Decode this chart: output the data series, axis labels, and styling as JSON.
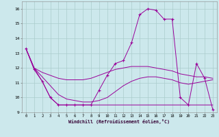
{
  "xlabel": "Windchill (Refroidissement éolien,°C)",
  "background_color": "#cce8ec",
  "grid_color": "#aacccc",
  "line_color": "#990099",
  "xlim": [
    -0.5,
    23.5
  ],
  "ylim": [
    9,
    16.5
  ],
  "xticks": [
    0,
    1,
    2,
    3,
    4,
    5,
    6,
    7,
    8,
    9,
    10,
    11,
    12,
    13,
    14,
    15,
    16,
    17,
    18,
    19,
    20,
    21,
    22,
    23
  ],
  "yticks": [
    9,
    10,
    11,
    12,
    13,
    14,
    15,
    16
  ],
  "series": [
    {
      "x": [
        0,
        1,
        2,
        3,
        4,
        5,
        6,
        7,
        8,
        9,
        10,
        11,
        12,
        13,
        14,
        15,
        16,
        17,
        18,
        19,
        20,
        21,
        22,
        23
      ],
      "y": [
        13.3,
        11.9,
        11.1,
        10.0,
        9.5,
        9.5,
        9.5,
        9.5,
        9.5,
        10.5,
        11.5,
        12.3,
        12.5,
        13.7,
        15.6,
        16.0,
        15.9,
        15.3,
        15.3,
        10.0,
        9.5,
        12.3,
        11.3,
        9.2
      ],
      "marker": true
    },
    {
      "x": [
        0,
        1,
        2,
        3,
        4,
        5,
        6,
        7,
        8,
        9,
        10,
        11,
        12,
        13,
        14,
        15,
        16,
        17,
        18,
        19,
        20,
        21,
        22,
        23
      ],
      "y": [
        13.3,
        12.0,
        11.7,
        11.5,
        11.3,
        11.2,
        11.2,
        11.2,
        11.3,
        11.5,
        11.7,
        11.9,
        12.0,
        12.1,
        12.1,
        12.1,
        12.0,
        11.9,
        11.8,
        11.6,
        11.5,
        11.4,
        11.4,
        11.3
      ],
      "marker": false
    },
    {
      "x": [
        0,
        1,
        2,
        3,
        4,
        5,
        6,
        7,
        8,
        9,
        10,
        11,
        12,
        13,
        14,
        15,
        16,
        17,
        18,
        19,
        20,
        21,
        22,
        23
      ],
      "y": [
        13.3,
        12.0,
        11.1,
        10.0,
        9.5,
        9.5,
        9.5,
        9.5,
        9.5,
        9.5,
        9.5,
        9.5,
        9.5,
        9.5,
        9.5,
        9.5,
        9.5,
        9.5,
        9.5,
        9.5,
        9.5,
        9.5,
        9.5,
        9.5
      ],
      "marker": false
    },
    {
      "x": [
        0,
        1,
        2,
        3,
        4,
        5,
        6,
        7,
        8,
        9,
        10,
        11,
        12,
        13,
        14,
        15,
        16,
        17,
        18,
        19,
        20,
        21,
        22,
        23
      ],
      "y": [
        13.3,
        12.0,
        11.4,
        10.8,
        10.2,
        9.9,
        9.8,
        9.7,
        9.7,
        9.8,
        10.0,
        10.4,
        10.8,
        11.1,
        11.3,
        11.4,
        11.4,
        11.3,
        11.2,
        11.0,
        10.9,
        11.0,
        11.1,
        11.2
      ],
      "marker": false
    }
  ]
}
